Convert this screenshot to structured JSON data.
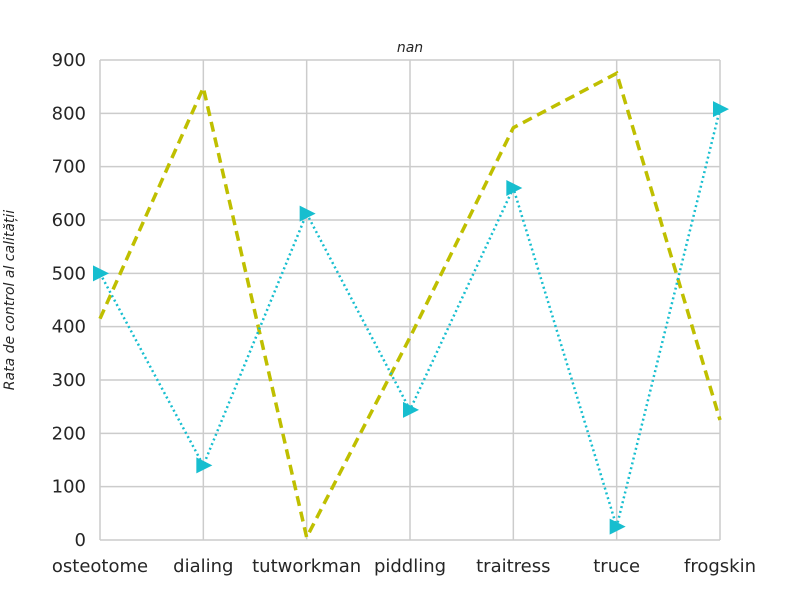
{
  "chart_data": {
    "type": "line",
    "title": "nan",
    "xlabel": "",
    "ylabel": "Rata de control al calității",
    "categories": [
      "osteotome",
      "dialing",
      "tutworkman",
      "piddling",
      "traitress",
      "truce",
      "frogskin"
    ],
    "ylim": [
      0,
      900
    ],
    "yticks": [
      0,
      100,
      200,
      300,
      400,
      500,
      600,
      700,
      800,
      900
    ],
    "grid": true,
    "series": [
      {
        "values": [
          415,
          848,
          5,
          380,
          773,
          875,
          225
        ],
        "color": "#bfbf00",
        "linestyle": "dashed",
        "marker": "none"
      },
      {
        "values": [
          500,
          140,
          612,
          244,
          660,
          25,
          808
        ],
        "color": "#17becf",
        "linestyle": "dotted",
        "marker": "triangle-right"
      }
    ]
  }
}
